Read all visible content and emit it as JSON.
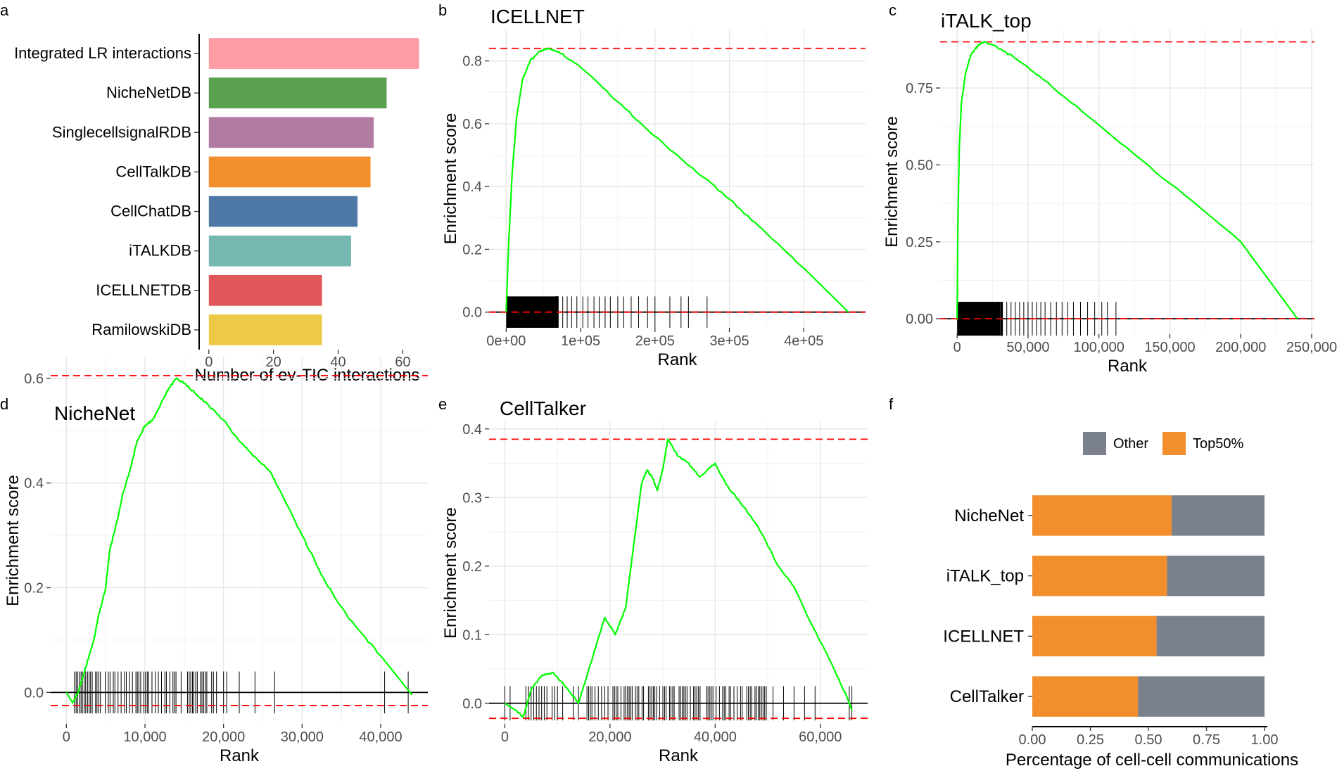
{
  "figure": {
    "panel_labels": [
      "a",
      "b",
      "c",
      "d",
      "e",
      "f"
    ]
  },
  "chart_data": [
    {
      "panel": "a",
      "type": "bar",
      "orientation": "horizontal",
      "title": "",
      "xlabel": "Number of ev-TIC interactions",
      "ylabel": "",
      "categories": [
        "Integrated LR interactions",
        "NicheNetDB",
        "SinglecellsignalRDB",
        "CellTalkDB",
        "CellChatDB",
        "iTALKDB",
        "ICELLNETDB",
        "RamilowskiDB"
      ],
      "values": [
        65,
        55,
        51,
        50,
        46,
        44,
        35,
        35
      ],
      "colors": [
        "#FF9DA6",
        "#59A14F",
        "#B07AA1",
        "#F28E2B",
        "#4E79A7",
        "#76B7B2",
        "#E15759",
        "#EDC948"
      ],
      "xlim": [
        -3,
        66
      ],
      "xticks": [
        0,
        20,
        40,
        60
      ],
      "xtick_labels": [
        "0",
        "20",
        "40",
        "60"
      ]
    },
    {
      "panel": "b",
      "type": "line",
      "title": "ICELLNET",
      "xlabel": "Rank",
      "ylabel": "Enrichment score",
      "xlim": [
        -23000,
        483000
      ],
      "ylim": [
        -0.05,
        0.9
      ],
      "xticks": [
        0,
        100000,
        200000,
        300000,
        400000
      ],
      "xtick_labels": [
        "0e+00",
        "1e+05",
        "2e+05",
        "3e+05",
        "4e+05"
      ],
      "yticks": [
        0,
        0.2,
        0.4,
        0.6,
        0.8
      ],
      "ytick_labels": [
        "0.0",
        "0.2",
        "0.4",
        "0.6",
        "0.8"
      ],
      "max_es": 0.84,
      "min_es": 0.0,
      "curve": [
        [
          0,
          0
        ],
        [
          3000,
          0.2
        ],
        [
          8000,
          0.44
        ],
        [
          14000,
          0.62
        ],
        [
          22000,
          0.74
        ],
        [
          32000,
          0.8
        ],
        [
          45000,
          0.83
        ],
        [
          55000,
          0.84
        ],
        [
          70000,
          0.83
        ],
        [
          100000,
          0.78
        ],
        [
          150000,
          0.67
        ],
        [
          200000,
          0.56
        ],
        [
          250000,
          0.46
        ],
        [
          300000,
          0.36
        ],
        [
          350000,
          0.25
        ],
        [
          400000,
          0.14
        ],
        [
          460000,
          0.0
        ]
      ],
      "rug": {
        "dense_end": 65000,
        "sparse": [
          70000,
          76000,
          82000,
          88000,
          95000,
          103000,
          110000,
          118000,
          125000,
          133000,
          140000,
          150000,
          158000,
          168000,
          178000,
          190000,
          200000,
          220000,
          235000,
          245000,
          270000
        ],
        "height": 0.05
      }
    },
    {
      "panel": "c",
      "type": "line",
      "title": "iTALK_top",
      "xlabel": "Rank",
      "ylabel": "Enrichment score",
      "xlim": [
        -12000,
        252000
      ],
      "ylim": [
        -0.05,
        0.94
      ],
      "xticks": [
        0,
        50000,
        100000,
        150000,
        200000,
        250000
      ],
      "xtick_labels": [
        "0",
        "50,000",
        "100,000",
        "150,000",
        "200,000",
        "250,000"
      ],
      "yticks": [
        0,
        0.25,
        0.5,
        0.75
      ],
      "ytick_labels": [
        "0.00",
        "0.25",
        "0.50",
        "0.75"
      ],
      "max_es": 0.9,
      "min_es": 0.0,
      "curve": [
        [
          0,
          0
        ],
        [
          500,
          0.3
        ],
        [
          1500,
          0.55
        ],
        [
          3000,
          0.7
        ],
        [
          6000,
          0.8
        ],
        [
          10000,
          0.86
        ],
        [
          15000,
          0.89
        ],
        [
          19000,
          0.9
        ],
        [
          25000,
          0.89
        ],
        [
          40000,
          0.85
        ],
        [
          60000,
          0.78
        ],
        [
          100000,
          0.63
        ],
        [
          150000,
          0.44
        ],
        [
          200000,
          0.25
        ],
        [
          240000,
          0.0
        ]
      ],
      "rug": {
        "dense_end": 30000,
        "sparse": [
          32000,
          35000,
          38000,
          41000,
          44000,
          47000,
          50000,
          53000,
          56000,
          59000,
          62000,
          66000,
          70000,
          74000,
          78000,
          82000,
          87000,
          92000,
          97000,
          102000,
          106000,
          112000
        ],
        "height": 0.055
      }
    },
    {
      "panel": "d",
      "type": "line",
      "title": "NicheNet",
      "xlabel": "Rank",
      "ylabel": "Enrichment score",
      "xlim": [
        -2000,
        46000
      ],
      "ylim": [
        -0.06,
        0.64
      ],
      "xticks": [
        0,
        10000,
        20000,
        30000,
        40000
      ],
      "xtick_labels": [
        "0",
        "10,000",
        "20,000",
        "30,000",
        "40,000"
      ],
      "yticks": [
        0,
        0.2,
        0.4,
        0.6
      ],
      "ytick_labels": [
        "0.0",
        "0.2",
        "0.4",
        "0.6"
      ],
      "max_es": 0.605,
      "min_es": -0.025,
      "curve": [
        [
          0,
          0
        ],
        [
          800,
          -0.02
        ],
        [
          1500,
          0.0
        ],
        [
          2500,
          0.05
        ],
        [
          3500,
          0.1
        ],
        [
          4000,
          0.14
        ],
        [
          5000,
          0.2
        ],
        [
          5500,
          0.27
        ],
        [
          6500,
          0.33
        ],
        [
          7200,
          0.38
        ],
        [
          8000,
          0.42
        ],
        [
          9000,
          0.48
        ],
        [
          10000,
          0.51
        ],
        [
          11000,
          0.52
        ],
        [
          12000,
          0.55
        ],
        [
          13000,
          0.58
        ],
        [
          14000,
          0.6
        ],
        [
          15000,
          0.59
        ],
        [
          16500,
          0.57
        ],
        [
          18000,
          0.55
        ],
        [
          20000,
          0.52
        ],
        [
          22000,
          0.48
        ],
        [
          24000,
          0.45
        ],
        [
          26000,
          0.42
        ],
        [
          27000,
          0.39
        ],
        [
          30000,
          0.3
        ],
        [
          33000,
          0.21
        ],
        [
          36000,
          0.14
        ],
        [
          40000,
          0.07
        ],
        [
          44000,
          -0.005
        ]
      ],
      "rug": {
        "dense_start": 1000,
        "dense_end": 19500,
        "sparse": [
          20000,
          20400,
          22000,
          24000,
          26500,
          40500,
          43500
        ],
        "height": 0.04
      }
    },
    {
      "panel": "e",
      "type": "line",
      "title": "CellTalker",
      "xlabel": "Rank",
      "ylabel": "Enrichment score",
      "xlim": [
        -3000,
        69000
      ],
      "ylim": [
        -0.03,
        0.41
      ],
      "xticks": [
        0,
        20000,
        40000,
        60000
      ],
      "xtick_labels": [
        "0",
        "20,000",
        "40,000",
        "60,000"
      ],
      "yticks": [
        0,
        0.1,
        0.2,
        0.3,
        0.4
      ],
      "ytick_labels": [
        "0.0",
        "0.1",
        "0.2",
        "0.3",
        "0.4"
      ],
      "max_es": 0.385,
      "min_es": -0.022,
      "curve": [
        [
          0,
          0
        ],
        [
          2000,
          -0.01
        ],
        [
          3500,
          -0.02
        ],
        [
          5000,
          0.02
        ],
        [
          7000,
          0.04
        ],
        [
          9000,
          0.045
        ],
        [
          11000,
          0.03
        ],
        [
          13000,
          0.01
        ],
        [
          14000,
          0.0
        ],
        [
          16000,
          0.05
        ],
        [
          18000,
          0.1
        ],
        [
          19000,
          0.125
        ],
        [
          21000,
          0.1
        ],
        [
          23000,
          0.14
        ],
        [
          24000,
          0.2
        ],
        [
          25000,
          0.26
        ],
        [
          26000,
          0.32
        ],
        [
          27000,
          0.34
        ],
        [
          28000,
          0.33
        ],
        [
          29000,
          0.31
        ],
        [
          30000,
          0.34
        ],
        [
          31000,
          0.385
        ],
        [
          33000,
          0.36
        ],
        [
          35000,
          0.35
        ],
        [
          37000,
          0.33
        ],
        [
          40000,
          0.35
        ],
        [
          42000,
          0.32
        ],
        [
          45000,
          0.29
        ],
        [
          48000,
          0.26
        ],
        [
          52000,
          0.2
        ],
        [
          55000,
          0.17
        ],
        [
          58000,
          0.12
        ],
        [
          62000,
          0.06
        ],
        [
          65000,
          0.01
        ],
        [
          66000,
          -0.01
        ]
      ],
      "rug": {
        "dense_start": 15000,
        "dense_end": 50000,
        "sparse": [
          0,
          1000,
          4000,
          4500,
          5000,
          5500,
          6000,
          6500,
          7000,
          7500,
          8000,
          9000,
          9500,
          10000,
          11000,
          13000,
          14000,
          51000,
          53000,
          55000,
          57000,
          59000,
          65500,
          66000
        ],
        "height": 0.025
      }
    },
    {
      "panel": "f",
      "type": "bar",
      "orientation": "horizontal",
      "stacked": true,
      "title": "",
      "xlabel": "Percentage of cell-cell communications",
      "ylabel": "",
      "categories": [
        "NicheNet",
        "iTALK_top",
        "ICELLNET",
        "CellTalker"
      ],
      "series": [
        {
          "name": "Top50%",
          "values": [
            0.6,
            0.58,
            0.535,
            0.455
          ],
          "color": "#F28E2B"
        },
        {
          "name": "Other",
          "values": [
            0.4,
            0.42,
            0.465,
            0.545
          ],
          "color": "#7A808C"
        }
      ],
      "legend_order": [
        "Other",
        "Top50%"
      ],
      "legend_position": "top",
      "xlim": [
        -0.001,
        1.01
      ],
      "xticks": [
        0,
        0.25,
        0.5,
        0.75,
        1.0
      ],
      "xtick_labels": [
        "0.00",
        "0.25",
        "0.50",
        "0.75",
        "1.00"
      ]
    }
  ]
}
